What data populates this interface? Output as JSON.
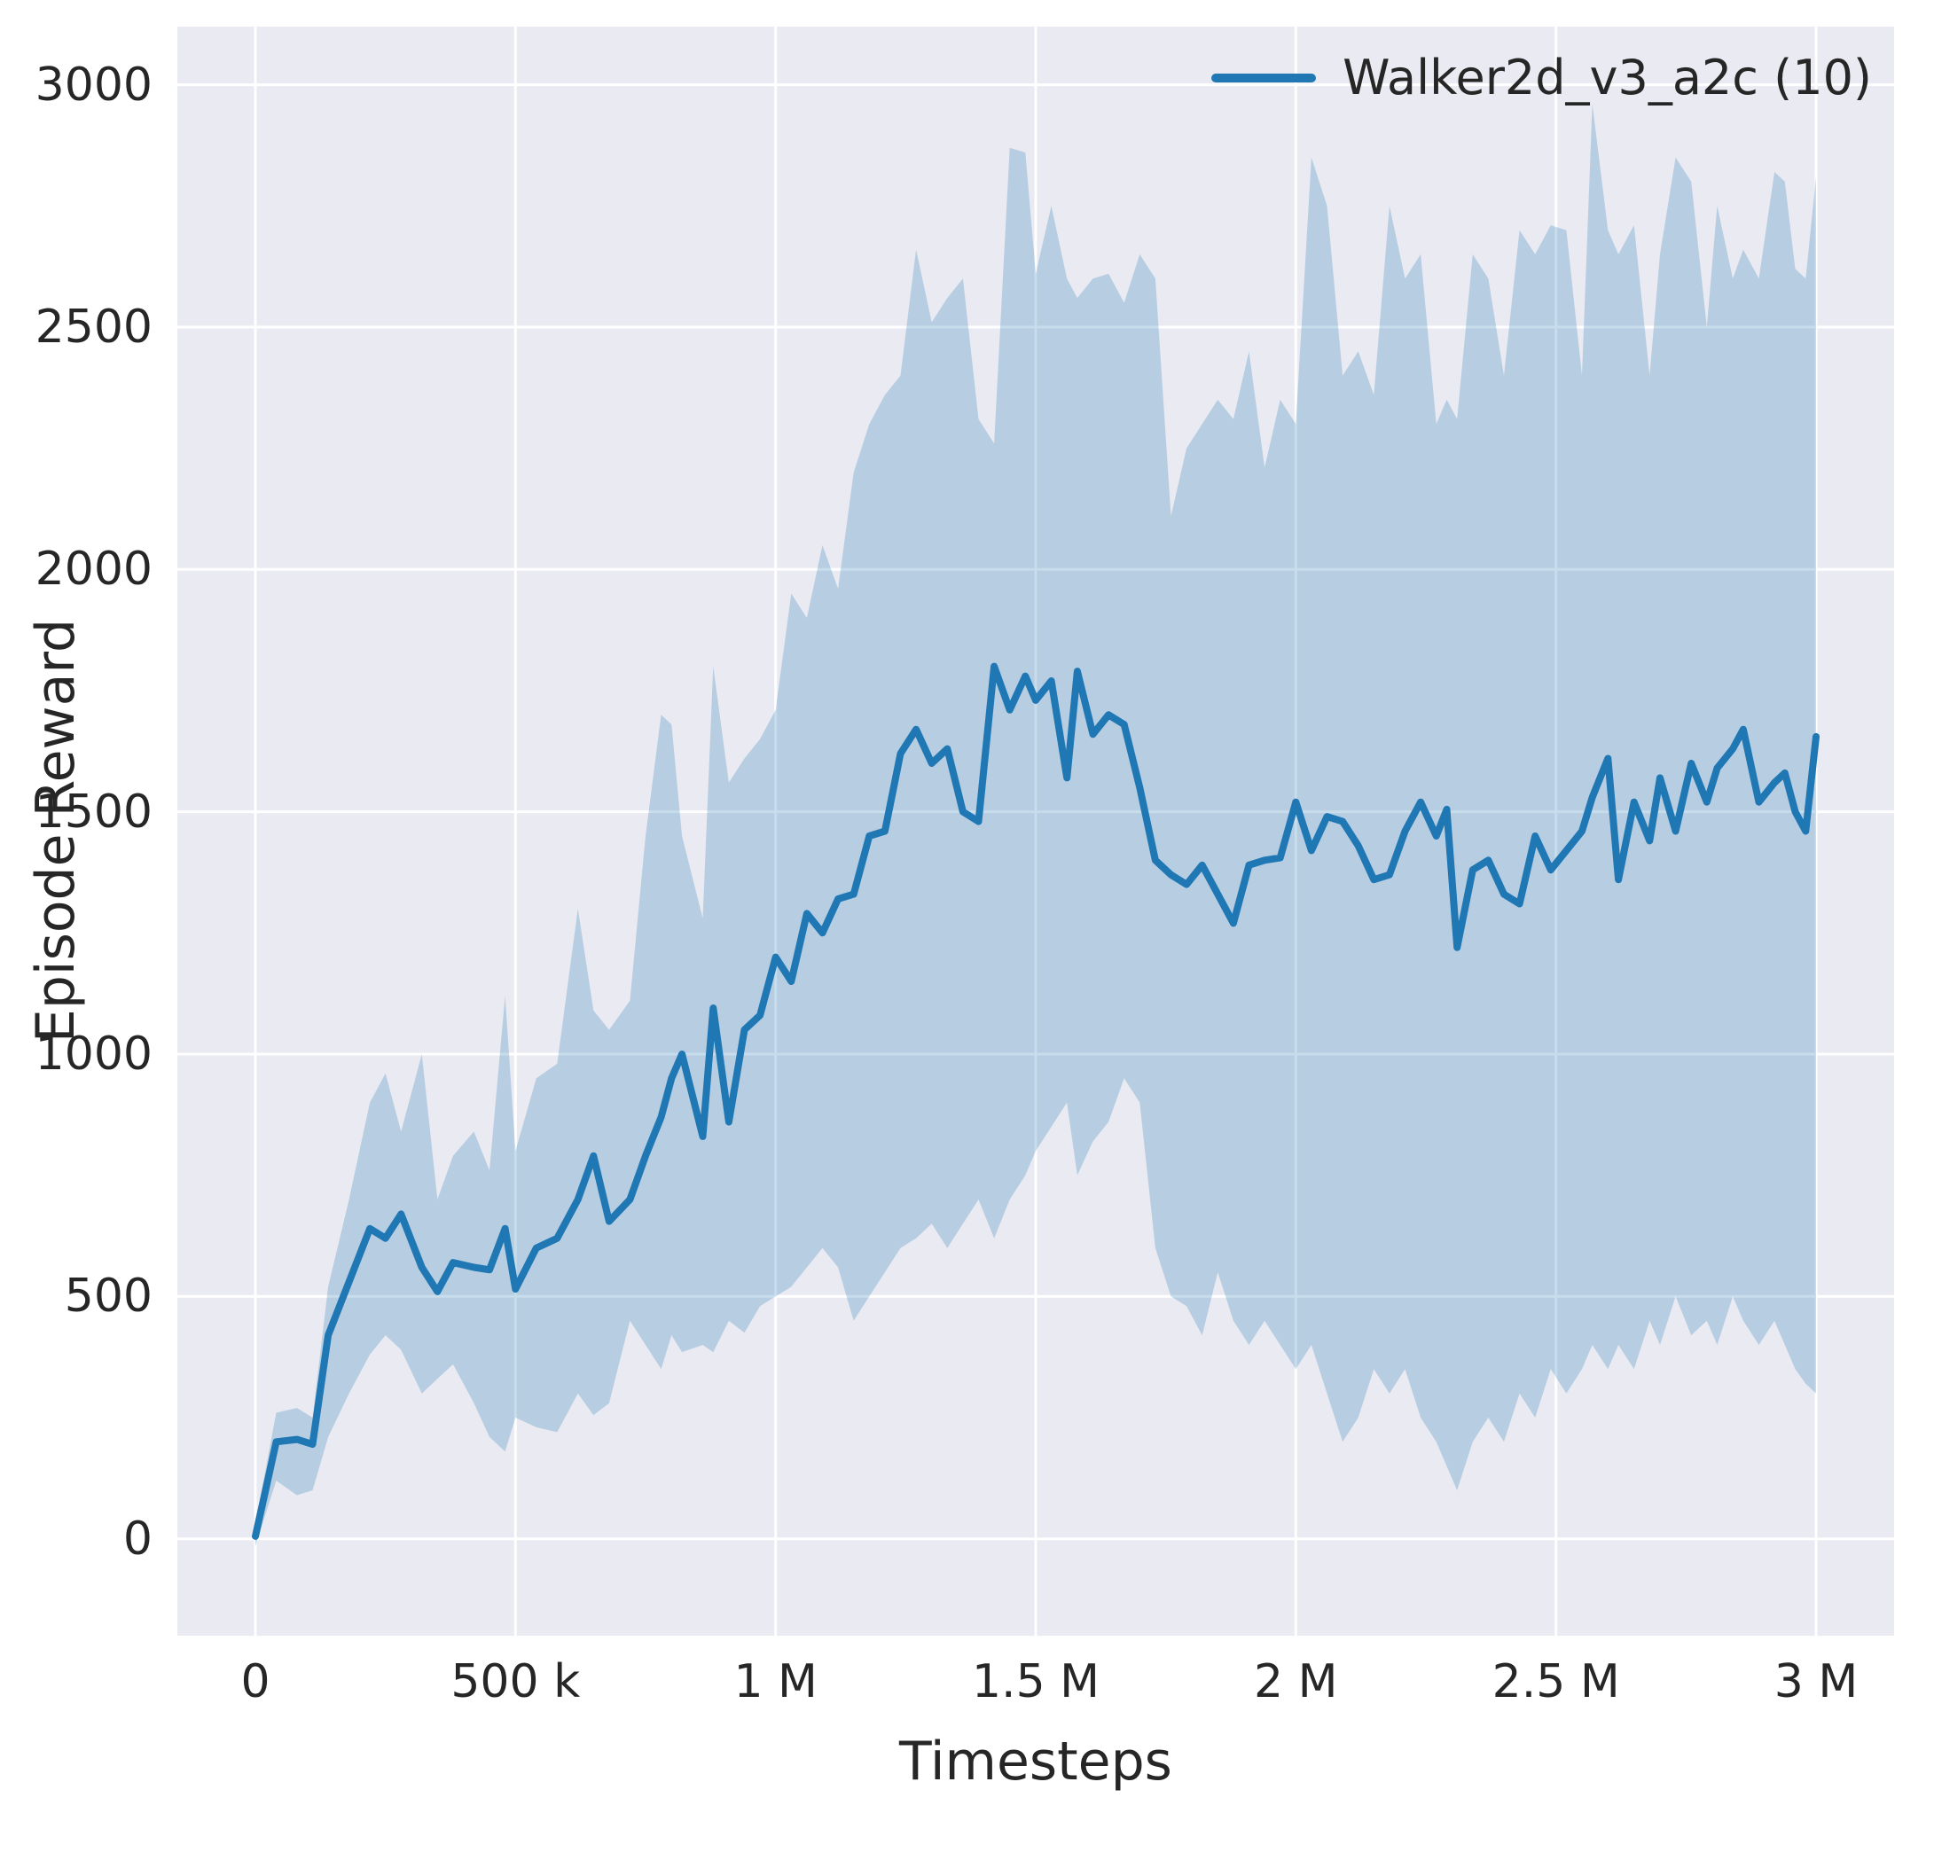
{
  "chart_data": {
    "type": "line",
    "title": "",
    "xlabel": "Timesteps",
    "ylabel": "Episode Reward",
    "x_unit": "millions of timesteps",
    "xlim": [
      -0.15,
      3.15
    ],
    "ylim": [
      -200,
      3120
    ],
    "grid": true,
    "legend_position": "upper right",
    "xticks": {
      "values": [
        0,
        0.5,
        1,
        1.5,
        2,
        2.5,
        3
      ],
      "labels": [
        "0",
        "500 k",
        "1 M",
        "1.5 M",
        "2 M",
        "2.5 M",
        "3 M"
      ]
    },
    "yticks": {
      "values": [
        0,
        500,
        1000,
        1500,
        2000,
        2500,
        3000
      ],
      "labels": [
        "0",
        "500",
        "1000",
        "1500",
        "2000",
        "2500",
        "3000"
      ]
    },
    "x": [
      0,
      0.04,
      0.08,
      0.11,
      0.14,
      0.18,
      0.22,
      0.25,
      0.28,
      0.32,
      0.35,
      0.38,
      0.42,
      0.45,
      0.48,
      0.5,
      0.54,
      0.58,
      0.62,
      0.65,
      0.68,
      0.72,
      0.75,
      0.78,
      0.8,
      0.82,
      0.86,
      0.88,
      0.91,
      0.94,
      0.97,
      1.0,
      1.03,
      1.06,
      1.09,
      1.12,
      1.15,
      1.18,
      1.21,
      1.24,
      1.27,
      1.3,
      1.33,
      1.36,
      1.39,
      1.42,
      1.45,
      1.48,
      1.5,
      1.53,
      1.56,
      1.58,
      1.61,
      1.64,
      1.67,
      1.7,
      1.73,
      1.76,
      1.79,
      1.82,
      1.85,
      1.88,
      1.91,
      1.94,
      1.97,
      2.0,
      2.03,
      2.06,
      2.09,
      2.12,
      2.15,
      2.18,
      2.21,
      2.24,
      2.27,
      2.29,
      2.31,
      2.34,
      2.37,
      2.4,
      2.43,
      2.46,
      2.49,
      2.52,
      2.55,
      2.57,
      2.6,
      2.62,
      2.65,
      2.68,
      2.7,
      2.73,
      2.76,
      2.79,
      2.81,
      2.84,
      2.86,
      2.89,
      2.92,
      2.94,
      2.96,
      2.98,
      3.0
    ],
    "series": [
      {
        "name": "Walker2d_v3_a2c (10)",
        "mean": [
          5,
          200,
          205,
          195,
          420,
          530,
          640,
          620,
          670,
          560,
          510,
          570,
          560,
          555,
          640,
          515,
          600,
          620,
          700,
          790,
          655,
          700,
          790,
          870,
          950,
          1000,
          830,
          1095,
          860,
          1050,
          1080,
          1200,
          1150,
          1290,
          1250,
          1320,
          1330,
          1450,
          1460,
          1620,
          1670,
          1600,
          1630,
          1500,
          1480,
          1800,
          1710,
          1780,
          1730,
          1770,
          1570,
          1790,
          1660,
          1700,
          1680,
          1550,
          1400,
          1370,
          1350,
          1390,
          1330,
          1270,
          1390,
          1400,
          1405,
          1520,
          1420,
          1490,
          1480,
          1430,
          1360,
          1370,
          1460,
          1520,
          1450,
          1505,
          1220,
          1380,
          1400,
          1330,
          1310,
          1450,
          1380,
          1420,
          1460,
          1530,
          1610,
          1360,
          1520,
          1440,
          1570,
          1460,
          1600,
          1520,
          1590,
          1630,
          1670,
          1520,
          1560,
          1580,
          1500,
          1460,
          1655
        ],
        "band_upper": [
          30,
          260,
          270,
          250,
          520,
          700,
          900,
          960,
          840,
          1000,
          700,
          790,
          840,
          760,
          1120,
          800,
          950,
          980,
          1300,
          1090,
          1050,
          1110,
          1450,
          1700,
          1680,
          1450,
          1280,
          1800,
          1560,
          1610,
          1650,
          1710,
          1950,
          1900,
          2050,
          1960,
          2200,
          2300,
          2360,
          2400,
          2660,
          2510,
          2560,
          2600,
          2310,
          2260,
          2870,
          2860,
          2610,
          2750,
          2600,
          2560,
          2600,
          2610,
          2550,
          2650,
          2600,
          2110,
          2250,
          2300,
          2350,
          2310,
          2450,
          2210,
          2350,
          2300,
          2850,
          2750,
          2400,
          2450,
          2360,
          2750,
          2600,
          2650,
          2300,
          2350,
          2310,
          2650,
          2600,
          2400,
          2700,
          2650,
          2710,
          2700,
          2400,
          2960,
          2700,
          2650,
          2710,
          2400,
          2650,
          2850,
          2800,
          2500,
          2750,
          2600,
          2660,
          2600,
          2820,
          2800,
          2620,
          2600,
          2810
        ],
        "band_lower": [
          -15,
          120,
          90,
          100,
          210,
          300,
          380,
          420,
          390,
          300,
          330,
          360,
          280,
          210,
          180,
          250,
          230,
          220,
          300,
          255,
          280,
          450,
          400,
          350,
          420,
          385,
          400,
          385,
          450,
          425,
          480,
          500,
          520,
          560,
          600,
          560,
          450,
          500,
          550,
          600,
          620,
          650,
          600,
          650,
          700,
          620,
          700,
          750,
          800,
          850,
          900,
          750,
          820,
          860,
          950,
          900,
          600,
          500,
          480,
          420,
          550,
          450,
          400,
          450,
          400,
          350,
          400,
          300,
          200,
          250,
          350,
          300,
          350,
          250,
          200,
          150,
          100,
          200,
          250,
          200,
          300,
          250,
          350,
          300,
          350,
          400,
          350,
          400,
          350,
          450,
          400,
          500,
          420,
          450,
          400,
          500,
          450,
          400,
          450,
          400,
          350,
          320,
          300
        ]
      }
    ],
    "colors": {
      "line": "#1f77b4",
      "band": "#1f77b4",
      "band_opacity": 0.25,
      "plot_background": "#eaeaf2",
      "grid": "#ffffff",
      "text": "#262626"
    }
  }
}
